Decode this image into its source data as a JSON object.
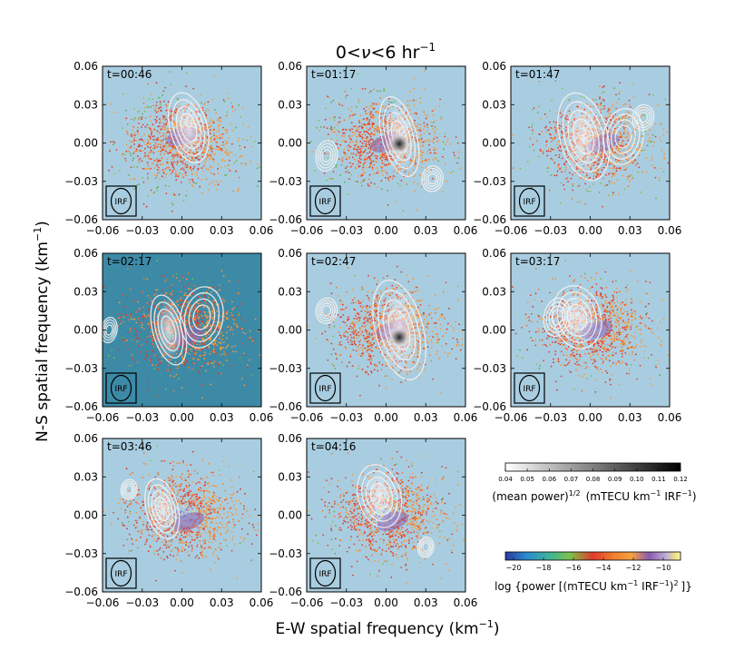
{
  "figure": {
    "title_main": "0<",
    "title_nu": "ν",
    "title_rest": "<6 hr",
    "title_sup": "−1",
    "xlabel": "E-W spatial frequency (km",
    "xlabel_sup": "−1",
    "xlabel_end": ")",
    "ylabel": "N-S spatial frequency (km",
    "ylabel_sup": "−1",
    "ylabel_end": ")",
    "irf_label": "IRF"
  },
  "chart_data": {
    "type": "scatter",
    "xlim": [
      -0.06,
      0.06
    ],
    "ylim": [
      -0.06,
      0.06
    ],
    "xticks": [
      "−0.06",
      "−0.03",
      "0.00",
      "0.03",
      "0.06"
    ],
    "yticks": [
      "0.06",
      "0.03",
      "0.00",
      "−0.03",
      "−0.06"
    ],
    "panels": [
      {
        "label": "t=00:46",
        "hot_x": 0.0,
        "hot_y": 0.005,
        "contours": [
          {
            "cx": 0.005,
            "cy": 0.012,
            "rx": 0.014,
            "ry": 0.028
          }
        ],
        "bg": "#a9cde0"
      },
      {
        "label": "t=01:17",
        "hot_x": 0.0,
        "hot_y": 0.0,
        "contours": [
          {
            "cx": 0.01,
            "cy": 0.005,
            "rx": 0.013,
            "ry": 0.032
          },
          {
            "cx": -0.045,
            "cy": -0.01,
            "rx": 0.008,
            "ry": 0.012
          },
          {
            "cx": 0.035,
            "cy": -0.028,
            "rx": 0.008,
            "ry": 0.01
          }
        ],
        "bg": "#a9cde0"
      },
      {
        "label": "t=01:47",
        "hot_x": 0.01,
        "hot_y": 0.0,
        "contours": [
          {
            "cx": -0.005,
            "cy": 0.005,
            "rx": 0.018,
            "ry": 0.035
          },
          {
            "cx": 0.025,
            "cy": 0.005,
            "rx": 0.015,
            "ry": 0.022
          },
          {
            "cx": 0.04,
            "cy": 0.02,
            "rx": 0.008,
            "ry": 0.01
          }
        ],
        "bg": "#a9cde0"
      },
      {
        "label": "t=02:17",
        "hot_x": 0.005,
        "hot_y": -0.005,
        "contours": [
          {
            "cx": -0.01,
            "cy": 0.0,
            "rx": 0.012,
            "ry": 0.028
          },
          {
            "cx": 0.015,
            "cy": 0.01,
            "rx": 0.016,
            "ry": 0.024
          },
          {
            "cx": -0.055,
            "cy": 0.0,
            "rx": 0.006,
            "ry": 0.01
          }
        ],
        "bg": "#3d8aa6"
      },
      {
        "label": "t=02:47",
        "hot_x": 0.005,
        "hot_y": 0.0,
        "contours": [
          {
            "cx": 0.01,
            "cy": 0.0,
            "rx": 0.018,
            "ry": 0.04
          },
          {
            "cx": -0.045,
            "cy": 0.015,
            "rx": 0.008,
            "ry": 0.01
          }
        ],
        "bg": "#a9cde0"
      },
      {
        "label": "t=03:17",
        "hot_x": 0.005,
        "hot_y": 0.0,
        "contours": [
          {
            "cx": -0.01,
            "cy": 0.01,
            "rx": 0.018,
            "ry": 0.025
          },
          {
            "cx": -0.025,
            "cy": 0.01,
            "rx": 0.01,
            "ry": 0.015
          }
        ],
        "bg": "#a9cde0"
      },
      {
        "label": "t=03:46",
        "hot_x": 0.005,
        "hot_y": -0.005,
        "contours": [
          {
            "cx": -0.015,
            "cy": 0.005,
            "rx": 0.012,
            "ry": 0.024
          },
          {
            "cx": -0.04,
            "cy": 0.02,
            "rx": 0.006,
            "ry": 0.008
          }
        ],
        "bg": "#a9cde0"
      },
      {
        "label": "t=04:16",
        "hot_x": 0.005,
        "hot_y": -0.005,
        "contours": [
          {
            "cx": -0.005,
            "cy": 0.015,
            "rx": 0.016,
            "ry": 0.025
          },
          {
            "cx": 0.03,
            "cy": -0.025,
            "rx": 0.006,
            "ry": 0.008
          }
        ],
        "bg": "#a9cde0"
      }
    ],
    "colorbar_gray": {
      "ticks": [
        "0.04",
        "0.05",
        "0.06",
        "0.07",
        "0.08",
        "0.09",
        "0.10",
        "0.11",
        "0.12"
      ],
      "label": "(mean power)",
      "label_sup": "1/2",
      "label_units": "(mTECU km",
      "label_units_sup": "−1",
      "label_units_end": "IRF",
      "label_units_end_sup": "−1",
      "label_close": ")"
    },
    "colorbar_color": {
      "ticks": [
        "−20",
        "−18",
        "−16",
        "−14",
        "−12",
        "−10"
      ],
      "label": "log {power [(mTECU km",
      "label_sup1": "−1",
      "label_mid": "IRF",
      "label_sup2": "−1",
      "label_mid2": ")",
      "label_sup3": "2",
      "label_end": "]}"
    }
  }
}
